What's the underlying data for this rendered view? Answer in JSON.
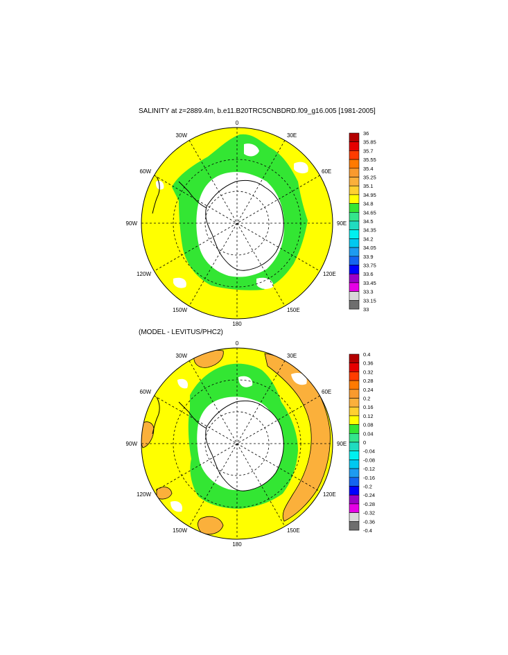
{
  "top_panel": {
    "title": "SALINITY at z=2889.4m, b.e11.B20TRC5CNBDRD.f09_g16.005 [1981-2005]",
    "lon_labels": {
      "n": "0",
      "ne": "30E",
      "ene": "60E",
      "e": "90E",
      "ese": "120E",
      "sse": "150E",
      "s": "180",
      "ssw": "150W",
      "wsw": "120W",
      "w": "90W",
      "wnw": "60W",
      "nnw": "30W"
    },
    "colorbar": {
      "labels": [
        "36",
        "35.85",
        "35.7",
        "35.55",
        "35.4",
        "35.25",
        "35.1",
        "34.95",
        "34.8",
        "34.65",
        "34.5",
        "34.35",
        "34.2",
        "34.05",
        "33.9",
        "33.75",
        "33.6",
        "33.45",
        "33.3",
        "33.15",
        "33"
      ],
      "colors": [
        "#b40000",
        "#e60000",
        "#ff3c00",
        "#ff7a00",
        "#f99a2e",
        "#fbb03b",
        "#ffd030",
        "#ffff00",
        "#33e633",
        "#33e68c",
        "#20dcc0",
        "#00f0f0",
        "#00c8f0",
        "#1e9bf0",
        "#1464f0",
        "#0000ff",
        "#9b00c8",
        "#e600e6",
        "#d8d8d8",
        "#6e6e6e"
      ]
    }
  },
  "bottom_panel": {
    "title": "(MODEL - LEVITUS/PHC2)",
    "lon_labels": {
      "n": "0",
      "ne": "30E",
      "ene": "60E",
      "e": "90E",
      "ese": "120E",
      "sse": "150E",
      "s": "180",
      "ssw": "150W",
      "wsw": "120W",
      "w": "90W",
      "wnw": "60W",
      "nnw": "30W"
    },
    "colorbar": {
      "labels": [
        "0.4",
        "0.36",
        "0.32",
        "0.28",
        "0.24",
        "0.2",
        "0.16",
        "0.12",
        "0.08",
        "0.04",
        "0",
        "-0.04",
        "-0.08",
        "-0.12",
        "-0.16",
        "-0.2",
        "-0.24",
        "-0.28",
        "-0.32",
        "-0.36",
        "-0.4"
      ],
      "colors": [
        "#b40000",
        "#e60000",
        "#ff3c00",
        "#ff7a00",
        "#f99a2e",
        "#fbb03b",
        "#ffd030",
        "#ffff00",
        "#33e633",
        "#33e68c",
        "#20dcc0",
        "#00f0f0",
        "#00c8f0",
        "#1e9bf0",
        "#1464f0",
        "#0000ff",
        "#9b00c8",
        "#e600e6",
        "#d8d8d8",
        "#6e6e6e"
      ]
    }
  }
}
